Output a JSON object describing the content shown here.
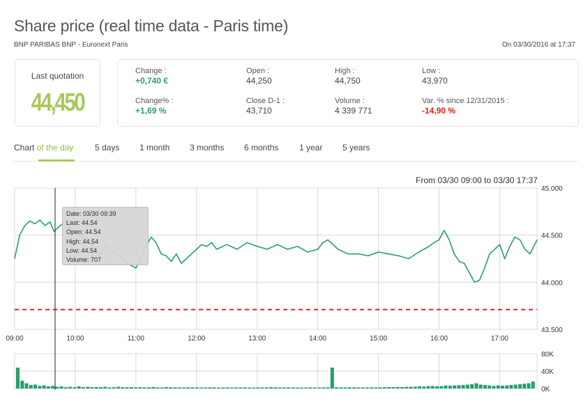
{
  "title": "Share price (real time data - Paris time)",
  "subtitle": "BNP PARIBAS  BNP - Euronext Paris",
  "as_of": "On 03/30/2016 at 17:37",
  "last_quotation": {
    "label": "Last quotation",
    "value": "44,450"
  },
  "stats": {
    "change": {
      "label": "Change :",
      "value": "+0,740 €"
    },
    "change_pct": {
      "label": "Change% :",
      "value": "+1,69 %"
    },
    "open": {
      "label": "Open :",
      "value": "44,250"
    },
    "close_d1": {
      "label": "Close D-1 :",
      "value": "43,710"
    },
    "high": {
      "label": "High :",
      "value": "44,750"
    },
    "volume": {
      "label": "Volume :",
      "value": "4 339 771"
    },
    "low": {
      "label": "Low :",
      "value": "43,970"
    },
    "var_since": {
      "label": "Var. % since 12/31/2015 :",
      "value": "-14,90 %"
    }
  },
  "tabs": {
    "chart_prefix": "Chart ",
    "chart_highlight": "of the day",
    "five_days": "5 days",
    "one_month": "1 month",
    "three_months": "3 months",
    "six_months": "6 months",
    "one_year": "1 year",
    "five_years": "5 years"
  },
  "range_text": "From 03/30 09:00 to 03/30 17:37",
  "tooltip": {
    "date": "Date: 03/30 09:39",
    "last": "Last: 44.54",
    "open": "Open: 44.54",
    "high": "High: 44.54",
    "low": "Low: 44.54",
    "volume": "Volume: 707"
  },
  "colors": {
    "price_line": "#23a06a",
    "reference_line": "#e02020",
    "positive": "#2aa36b",
    "negative": "#e02020",
    "accent": "#a8c95b"
  },
  "chart_data": [
    {
      "type": "line",
      "x_ticks": [
        "09:00",
        "10:00",
        "11:00",
        "12:00",
        "13:00",
        "14:00",
        "15:00",
        "16:00",
        "17:00"
      ],
      "y_ticks": [
        "45.000",
        "44.500",
        "44.000",
        "43.500"
      ],
      "ylim": [
        43.5,
        45.0
      ],
      "reference_line": {
        "value": 43.71,
        "style": "dashed"
      },
      "grid": true,
      "series": [
        {
          "x": [
            "09:00",
            "09:05",
            "09:10",
            "09:15",
            "09:20",
            "09:25",
            "09:30",
            "09:35",
            "09:39",
            "09:45",
            "09:50",
            "09:55",
            "10:00",
            "10:05",
            "10:10",
            "10:15",
            "10:20",
            "10:25",
            "10:30",
            "10:40",
            "10:50",
            "10:55",
            "11:00",
            "11:05",
            "11:10",
            "11:15",
            "11:20",
            "11:25",
            "11:30",
            "11:35",
            "11:40",
            "11:45",
            "11:50",
            "11:55",
            "12:00",
            "12:05",
            "12:10",
            "12:15",
            "12:20",
            "12:30",
            "12:40",
            "12:50",
            "13:00",
            "13:10",
            "13:20",
            "13:30",
            "13:40",
            "13:50",
            "14:00",
            "14:05",
            "14:10",
            "14:15",
            "14:20",
            "14:30",
            "14:40",
            "14:50",
            "15:00",
            "15:10",
            "15:20",
            "15:30",
            "15:40",
            "15:50",
            "15:55",
            "16:00",
            "16:05",
            "16:10",
            "16:15",
            "16:20",
            "16:25",
            "16:30",
            "16:35",
            "16:40",
            "16:45",
            "16:50",
            "16:55",
            "17:00",
            "17:05",
            "17:10",
            "17:15",
            "17:20",
            "17:25",
            "17:30",
            "17:37"
          ],
          "y": [
            44.25,
            44.5,
            44.6,
            44.65,
            44.62,
            44.66,
            44.6,
            44.64,
            44.54,
            44.6,
            44.64,
            44.58,
            44.55,
            44.5,
            44.45,
            44.4,
            44.35,
            44.3,
            44.4,
            44.3,
            44.22,
            44.18,
            44.15,
            44.25,
            44.38,
            44.48,
            44.42,
            44.3,
            44.28,
            44.22,
            44.3,
            44.2,
            44.25,
            44.3,
            44.35,
            44.4,
            44.38,
            44.42,
            44.35,
            44.4,
            44.35,
            44.42,
            44.38,
            44.35,
            44.4,
            44.35,
            44.38,
            44.32,
            44.35,
            44.42,
            44.45,
            44.4,
            44.35,
            44.3,
            44.3,
            44.28,
            44.32,
            44.3,
            44.28,
            44.25,
            44.32,
            44.38,
            44.42,
            44.45,
            44.55,
            44.45,
            44.3,
            44.22,
            44.2,
            44.1,
            44.0,
            44.02,
            44.15,
            44.3,
            44.35,
            44.4,
            44.25,
            44.38,
            44.48,
            44.45,
            44.35,
            44.3,
            44.45
          ]
        }
      ]
    },
    {
      "type": "bar",
      "title": "",
      "y_ticks": [
        "80K",
        "40K",
        "0K"
      ],
      "ylim": [
        0,
        80000
      ],
      "values": [
        48000,
        18000,
        12000,
        8000,
        9000,
        6000,
        7000,
        5000,
        6000,
        4000,
        5000,
        3000,
        4000,
        3000,
        5000,
        3000,
        4000,
        3000,
        3500,
        3000,
        4000,
        2500,
        3000,
        4000,
        3000,
        2800,
        3200,
        2600,
        3000,
        2500,
        2800,
        3500,
        2600,
        2400,
        3000,
        2800,
        2500,
        2600,
        2400,
        2800,
        2600,
        2500,
        2300,
        2400,
        2600,
        2500,
        2300,
        2400,
        2500,
        2300,
        2400,
        2500,
        2600,
        2400,
        2300,
        2500,
        2400,
        2600,
        3000,
        2700,
        2500,
        2400,
        2600,
        2500,
        2400,
        2300,
        2400,
        2500,
        2300,
        2400,
        2600,
        2500,
        48000,
        2800,
        2600,
        2500,
        2700,
        2600,
        2500,
        2400,
        2500,
        2700,
        2600,
        2800,
        3000,
        3200,
        3000,
        3500,
        3200,
        3800,
        4000,
        4200,
        5000,
        4500,
        5500,
        6000,
        5000,
        5500,
        7000,
        6500,
        7000,
        7500,
        8000,
        9000,
        10000,
        12000,
        9000,
        8000,
        7000,
        6000,
        7000,
        6500,
        7000,
        8000,
        9000,
        10000,
        11000,
        12000,
        16000
      ]
    }
  ]
}
